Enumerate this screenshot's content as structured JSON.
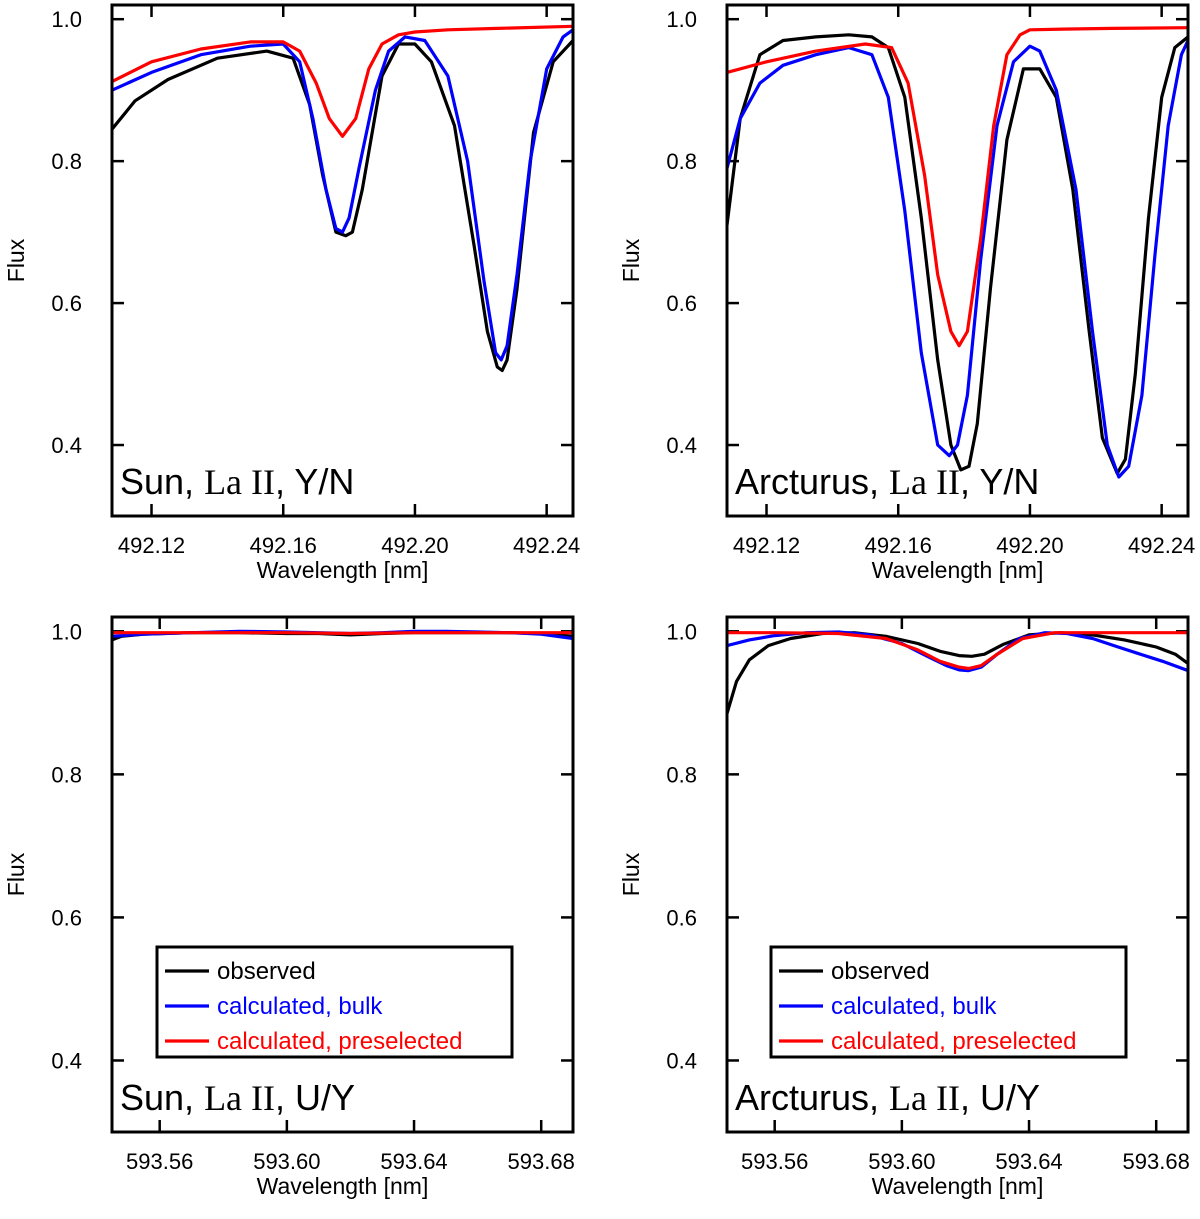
{
  "chart_data": [
    {
      "type": "line",
      "id": "sun-la-yn",
      "label": {
        "star": "Sun,",
        "ion": "La II",
        "flag": ", Y/N"
      },
      "xlabel": "Wavelength [nm]",
      "ylabel": "Flux",
      "xlim": [
        492.108,
        492.248
      ],
      "ylim": [
        0.3,
        1.02
      ],
      "xticks": [
        492.12,
        492.16,
        492.2,
        492.24
      ],
      "xtick_labels": [
        "492.12",
        "492.16",
        "492.20",
        "492.24"
      ],
      "yticks": [
        0.4,
        0.6,
        0.8,
        1.0
      ],
      "ytick_labels": [
        "0.4",
        "0.6",
        "0.8",
        "1.0"
      ],
      "series": [
        {
          "name": "observed",
          "color": "#000000",
          "x": [
            492.108,
            492.115,
            492.125,
            492.14,
            492.155,
            492.163,
            492.168,
            492.172,
            492.176,
            492.179,
            492.181,
            492.184,
            492.19,
            492.195,
            492.2,
            492.205,
            492.212,
            492.218,
            492.222,
            492.225,
            492.2265,
            492.228,
            492.231,
            492.236,
            492.242,
            492.248
          ],
          "y": [
            0.845,
            0.885,
            0.915,
            0.945,
            0.955,
            0.945,
            0.88,
            0.78,
            0.7,
            0.695,
            0.7,
            0.76,
            0.92,
            0.965,
            0.965,
            0.94,
            0.85,
            0.68,
            0.56,
            0.51,
            0.505,
            0.52,
            0.62,
            0.84,
            0.94,
            0.97
          ]
        },
        {
          "name": "calculated, bulk",
          "color": "#0000ff",
          "x": [
            492.108,
            492.12,
            492.135,
            492.15,
            492.16,
            492.165,
            492.169,
            492.173,
            492.176,
            492.178,
            492.18,
            492.183,
            492.188,
            492.192,
            492.197,
            492.203,
            492.21,
            492.216,
            492.221,
            492.2245,
            492.2262,
            492.228,
            492.231,
            492.235,
            492.24,
            492.245,
            492.248
          ],
          "y": [
            0.9,
            0.925,
            0.95,
            0.962,
            0.965,
            0.94,
            0.86,
            0.76,
            0.705,
            0.7,
            0.72,
            0.79,
            0.9,
            0.955,
            0.975,
            0.97,
            0.92,
            0.8,
            0.63,
            0.53,
            0.52,
            0.54,
            0.64,
            0.8,
            0.93,
            0.975,
            0.985
          ]
        },
        {
          "name": "calculated, preselected",
          "color": "#ff0000",
          "x": [
            492.108,
            492.12,
            492.135,
            492.15,
            492.16,
            492.165,
            492.17,
            492.174,
            492.178,
            492.182,
            492.186,
            492.19,
            492.195,
            492.2,
            492.21,
            492.225,
            492.248
          ],
          "y": [
            0.912,
            0.94,
            0.958,
            0.968,
            0.968,
            0.955,
            0.91,
            0.86,
            0.835,
            0.86,
            0.93,
            0.965,
            0.978,
            0.982,
            0.985,
            0.987,
            0.99
          ]
        }
      ]
    },
    {
      "type": "line",
      "id": "arcturus-la-yn",
      "label": {
        "star": "Arcturus,",
        "ion": "La II",
        "flag": ", Y/N"
      },
      "xlabel": "Wavelength [nm]",
      "ylabel": "Flux",
      "xlim": [
        492.108,
        492.248
      ],
      "ylim": [
        0.3,
        1.02
      ],
      "xticks": [
        492.12,
        492.16,
        492.2,
        492.24
      ],
      "xtick_labels": [
        "492.12",
        "492.16",
        "492.20",
        "492.24"
      ],
      "yticks": [
        0.4,
        0.6,
        0.8,
        1.0
      ],
      "ytick_labels": [
        "0.4",
        "0.6",
        "0.8",
        "1.0"
      ],
      "series": [
        {
          "name": "observed",
          "color": "#000000",
          "x": [
            492.108,
            492.112,
            492.118,
            492.125,
            492.135,
            492.145,
            492.152,
            492.157,
            492.162,
            492.167,
            492.172,
            492.176,
            492.179,
            492.1815,
            492.184,
            492.188,
            492.193,
            492.198,
            492.203,
            492.208,
            492.213,
            492.218,
            492.222,
            492.2265,
            492.229,
            492.232,
            492.236,
            492.24,
            492.244,
            492.248
          ],
          "y": [
            0.71,
            0.86,
            0.95,
            0.97,
            0.975,
            0.978,
            0.975,
            0.96,
            0.89,
            0.72,
            0.52,
            0.4,
            0.365,
            0.37,
            0.43,
            0.62,
            0.83,
            0.93,
            0.93,
            0.89,
            0.76,
            0.56,
            0.41,
            0.36,
            0.38,
            0.5,
            0.72,
            0.89,
            0.96,
            0.975
          ]
        },
        {
          "name": "calculated, bulk",
          "color": "#0000ff",
          "x": [
            492.108,
            492.112,
            492.118,
            492.125,
            492.135,
            492.145,
            492.152,
            492.157,
            492.162,
            492.167,
            492.172,
            492.1755,
            492.178,
            492.181,
            492.185,
            492.19,
            492.195,
            492.2,
            492.203,
            492.208,
            492.214,
            492.219,
            492.2235,
            492.227,
            492.23,
            492.234,
            492.238,
            492.242,
            492.246,
            492.248
          ],
          "y": [
            0.79,
            0.86,
            0.91,
            0.935,
            0.95,
            0.96,
            0.95,
            0.89,
            0.73,
            0.53,
            0.4,
            0.385,
            0.4,
            0.47,
            0.66,
            0.85,
            0.94,
            0.962,
            0.955,
            0.9,
            0.76,
            0.56,
            0.4,
            0.355,
            0.37,
            0.47,
            0.67,
            0.85,
            0.95,
            0.97
          ]
        },
        {
          "name": "calculated, preselected",
          "color": "#ff0000",
          "x": [
            492.108,
            492.12,
            492.135,
            492.15,
            492.158,
            492.163,
            492.168,
            492.172,
            492.176,
            492.1785,
            492.181,
            492.185,
            492.189,
            492.193,
            492.197,
            492.2,
            492.21,
            492.225,
            492.248
          ],
          "y": [
            0.925,
            0.94,
            0.955,
            0.965,
            0.96,
            0.91,
            0.78,
            0.64,
            0.56,
            0.54,
            0.56,
            0.69,
            0.85,
            0.95,
            0.978,
            0.985,
            0.986,
            0.987,
            0.988
          ]
        }
      ]
    },
    {
      "type": "line",
      "id": "sun-la-uy",
      "label": {
        "star": "Sun,",
        "ion": "La II",
        "flag": ", U/Y"
      },
      "xlabel": "Wavelength [nm]",
      "ylabel": "Flux",
      "xlim": [
        593.545,
        593.69
      ],
      "ylim": [
        0.3,
        1.02
      ],
      "xticks": [
        593.56,
        593.6,
        593.64,
        593.68
      ],
      "xtick_labels": [
        "593.56",
        "593.60",
        "593.64",
        "593.68"
      ],
      "yticks": [
        0.4,
        0.6,
        0.8,
        1.0
      ],
      "ytick_labels": [
        "0.4",
        "0.6",
        "0.8",
        "1.0"
      ],
      "series": [
        {
          "name": "observed",
          "color": "#000000",
          "x": [
            593.545,
            593.548,
            593.555,
            593.57,
            593.585,
            593.6,
            593.61,
            593.62,
            593.63,
            593.64,
            593.65,
            593.66,
            593.67,
            593.68,
            593.69
          ],
          "y": [
            0.988,
            0.993,
            0.996,
            0.998,
            0.998,
            0.997,
            0.997,
            0.995,
            0.997,
            0.998,
            0.998,
            0.998,
            0.998,
            0.997,
            0.993
          ]
        },
        {
          "name": "calculated, bulk",
          "color": "#0000ff",
          "x": [
            593.545,
            593.555,
            593.57,
            593.585,
            593.6,
            593.61,
            593.62,
            593.63,
            593.64,
            593.65,
            593.66,
            593.67,
            593.68,
            593.69
          ],
          "y": [
            0.993,
            0.996,
            0.998,
            1.0,
            0.999,
            0.998,
            0.997,
            0.998,
            1.0,
            1.0,
            0.999,
            0.998,
            0.996,
            0.99
          ]
        },
        {
          "name": "calculated, preselected",
          "color": "#ff0000",
          "x": [
            593.545,
            593.57,
            593.6,
            593.62,
            593.64,
            593.66,
            593.69
          ],
          "y": [
            0.998,
            0.998,
            0.998,
            0.997,
            0.998,
            0.998,
            0.998
          ]
        }
      ],
      "legend": {
        "placement": "lower-center",
        "entries": [
          "observed",
          "calculated, bulk",
          "calculated, preselected"
        ]
      }
    },
    {
      "type": "line",
      "id": "arcturus-la-uy",
      "label": {
        "star": "Arcturus,",
        "ion": "La II",
        "flag": ", U/Y"
      },
      "xlabel": "Wavelength [nm]",
      "ylabel": "Flux",
      "xlim": [
        593.545,
        593.69
      ],
      "ylim": [
        0.3,
        1.02
      ],
      "xticks": [
        593.56,
        593.6,
        593.64,
        593.68
      ],
      "xtick_labels": [
        "593.56",
        "593.60",
        "593.64",
        "593.68"
      ],
      "yticks": [
        0.4,
        0.6,
        0.8,
        1.0
      ],
      "ytick_labels": [
        "0.4",
        "0.6",
        "0.8",
        "1.0"
      ],
      "series": [
        {
          "name": "observed",
          "color": "#000000",
          "x": [
            593.545,
            593.548,
            593.552,
            593.558,
            593.565,
            593.575,
            593.585,
            593.595,
            593.605,
            593.612,
            593.618,
            593.622,
            593.626,
            593.632,
            593.64,
            593.65,
            593.66,
            593.67,
            593.68,
            593.686,
            593.69
          ],
          "y": [
            0.885,
            0.93,
            0.96,
            0.98,
            0.99,
            0.997,
            0.998,
            0.993,
            0.983,
            0.972,
            0.966,
            0.965,
            0.968,
            0.982,
            0.995,
            0.998,
            0.995,
            0.988,
            0.978,
            0.968,
            0.955
          ]
        },
        {
          "name": "calculated, bulk",
          "color": "#0000ff",
          "x": [
            593.545,
            593.552,
            593.56,
            593.57,
            593.58,
            593.59,
            593.6,
            593.608,
            593.614,
            593.618,
            593.621,
            593.625,
            593.63,
            593.637,
            593.645,
            593.652,
            593.66,
            593.668,
            593.675,
            593.682,
            593.69
          ],
          "y": [
            0.98,
            0.988,
            0.994,
            0.998,
            0.999,
            0.995,
            0.983,
            0.965,
            0.952,
            0.946,
            0.945,
            0.95,
            0.968,
            0.99,
            0.998,
            0.997,
            0.99,
            0.978,
            0.968,
            0.958,
            0.945
          ]
        },
        {
          "name": "calculated, preselected",
          "color": "#ff0000",
          "x": [
            593.545,
            593.56,
            593.58,
            593.595,
            593.605,
            593.612,
            593.618,
            593.621,
            593.625,
            593.63,
            593.638,
            593.648,
            593.66,
            593.69
          ],
          "y": [
            0.998,
            0.998,
            0.997,
            0.99,
            0.974,
            0.958,
            0.95,
            0.948,
            0.952,
            0.968,
            0.99,
            0.998,
            0.998,
            0.998
          ]
        }
      ],
      "legend": {
        "placement": "lower-center",
        "entries": [
          "observed",
          "calculated, bulk",
          "calculated, preselected"
        ]
      }
    }
  ]
}
